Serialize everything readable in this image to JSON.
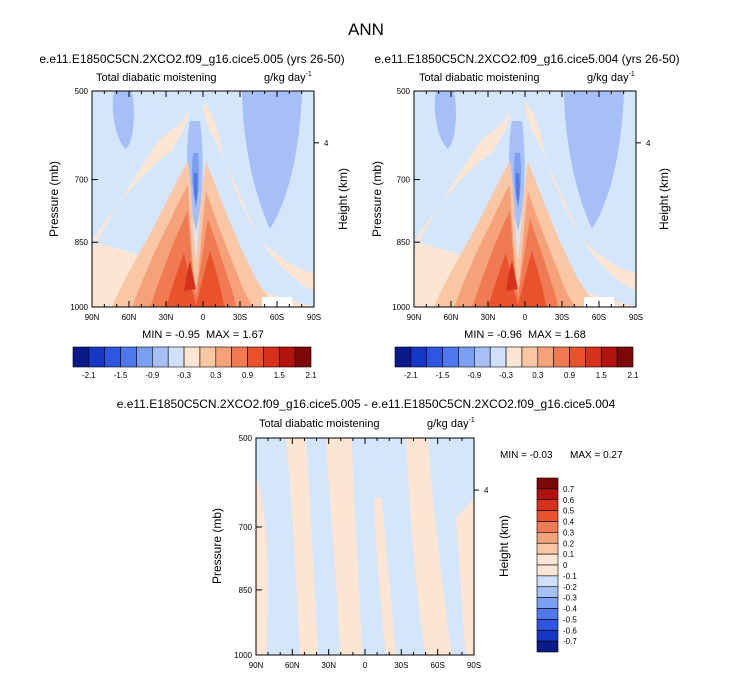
{
  "title": "ANN",
  "chart_data": [
    {
      "type": "heatmap",
      "title": "e.e11.E1850C5CN.2XCO2.f09_g16.cice5.005 (yrs 26-50)",
      "variable": "Total diabatic moistening",
      "units": "g/kg day",
      "units_exp": "-1",
      "ylabel": "Pressure (mb)",
      "ylabel_right": "Height (km)",
      "x_ticks": [
        "90N",
        "60N",
        "30N",
        "0",
        "30S",
        "60S",
        "90S"
      ],
      "y_ticks": [
        "500",
        "700",
        "850",
        "1000"
      ],
      "y_right_ticks": [
        "4"
      ],
      "stats": "MIN = -0.95  MAX = 1.67",
      "colorbar": {
        "orientation": "horizontal",
        "labels": [
          "-2.1",
          "-1.5",
          "-0.9",
          "-0.3",
          "0.3",
          "0.9",
          "1.5",
          "2.1"
        ]
      }
    },
    {
      "type": "heatmap",
      "title": "e.e11.E1850C5CN.2XCO2.f09_g16.cice5.004 (yrs 26-50)",
      "variable": "Total diabatic moistening",
      "units": "g/kg day",
      "units_exp": "-1",
      "ylabel": "Pressure (mb)",
      "ylabel_right": "Height (km)",
      "x_ticks": [
        "90N",
        "60N",
        "30N",
        "0",
        "30S",
        "60S",
        "90S"
      ],
      "y_ticks": [
        "500",
        "700",
        "850",
        "1000"
      ],
      "y_right_ticks": [
        "4"
      ],
      "stats": "MIN = -0.96  MAX = 1.68",
      "colorbar": {
        "orientation": "horizontal",
        "labels": [
          "-2.1",
          "-1.5",
          "-0.9",
          "-0.3",
          "0.3",
          "0.9",
          "1.5",
          "2.1"
        ]
      }
    },
    {
      "type": "heatmap",
      "title": "e.e11.E1850C5CN.2XCO2.f09_g16.cice5.005 - e.e11.E1850C5CN.2XCO2.f09_g16.cice5.004",
      "variable": "Total diabatic moistening",
      "units": "g/kg day",
      "units_exp": "-1",
      "ylabel": "Pressure (mb)",
      "ylabel_right": "Height (km)",
      "x_ticks": [
        "90N",
        "60N",
        "30N",
        "0",
        "30S",
        "60S",
        "90S"
      ],
      "y_ticks": [
        "500",
        "700",
        "850",
        "1000"
      ],
      "y_right_ticks": [
        "4"
      ],
      "stats_min": "MIN = -0.03",
      "stats_max": "MAX = 0.27",
      "colorbar": {
        "orientation": "vertical",
        "labels": [
          "0.7",
          "0.6",
          "0.5",
          "0.4",
          "0.3",
          "0.2",
          "0.1",
          "0",
          "-0.1",
          "-0.2",
          "-0.3",
          "-0.4",
          "-0.5",
          "-0.6",
          "-0.7"
        ]
      }
    }
  ],
  "colors": {
    "scale": [
      "#0a1a8a",
      "#1636c6",
      "#2f56e0",
      "#4f78ec",
      "#7b9ff3",
      "#a6bff7",
      "#cfe0fa",
      "#fde5d3",
      "#f9c7a6",
      "#f5a27a",
      "#f07a52",
      "#e8532e",
      "#d5311b",
      "#b3130f",
      "#7d0606"
    ],
    "background_cell": "#d4e6fb"
  }
}
